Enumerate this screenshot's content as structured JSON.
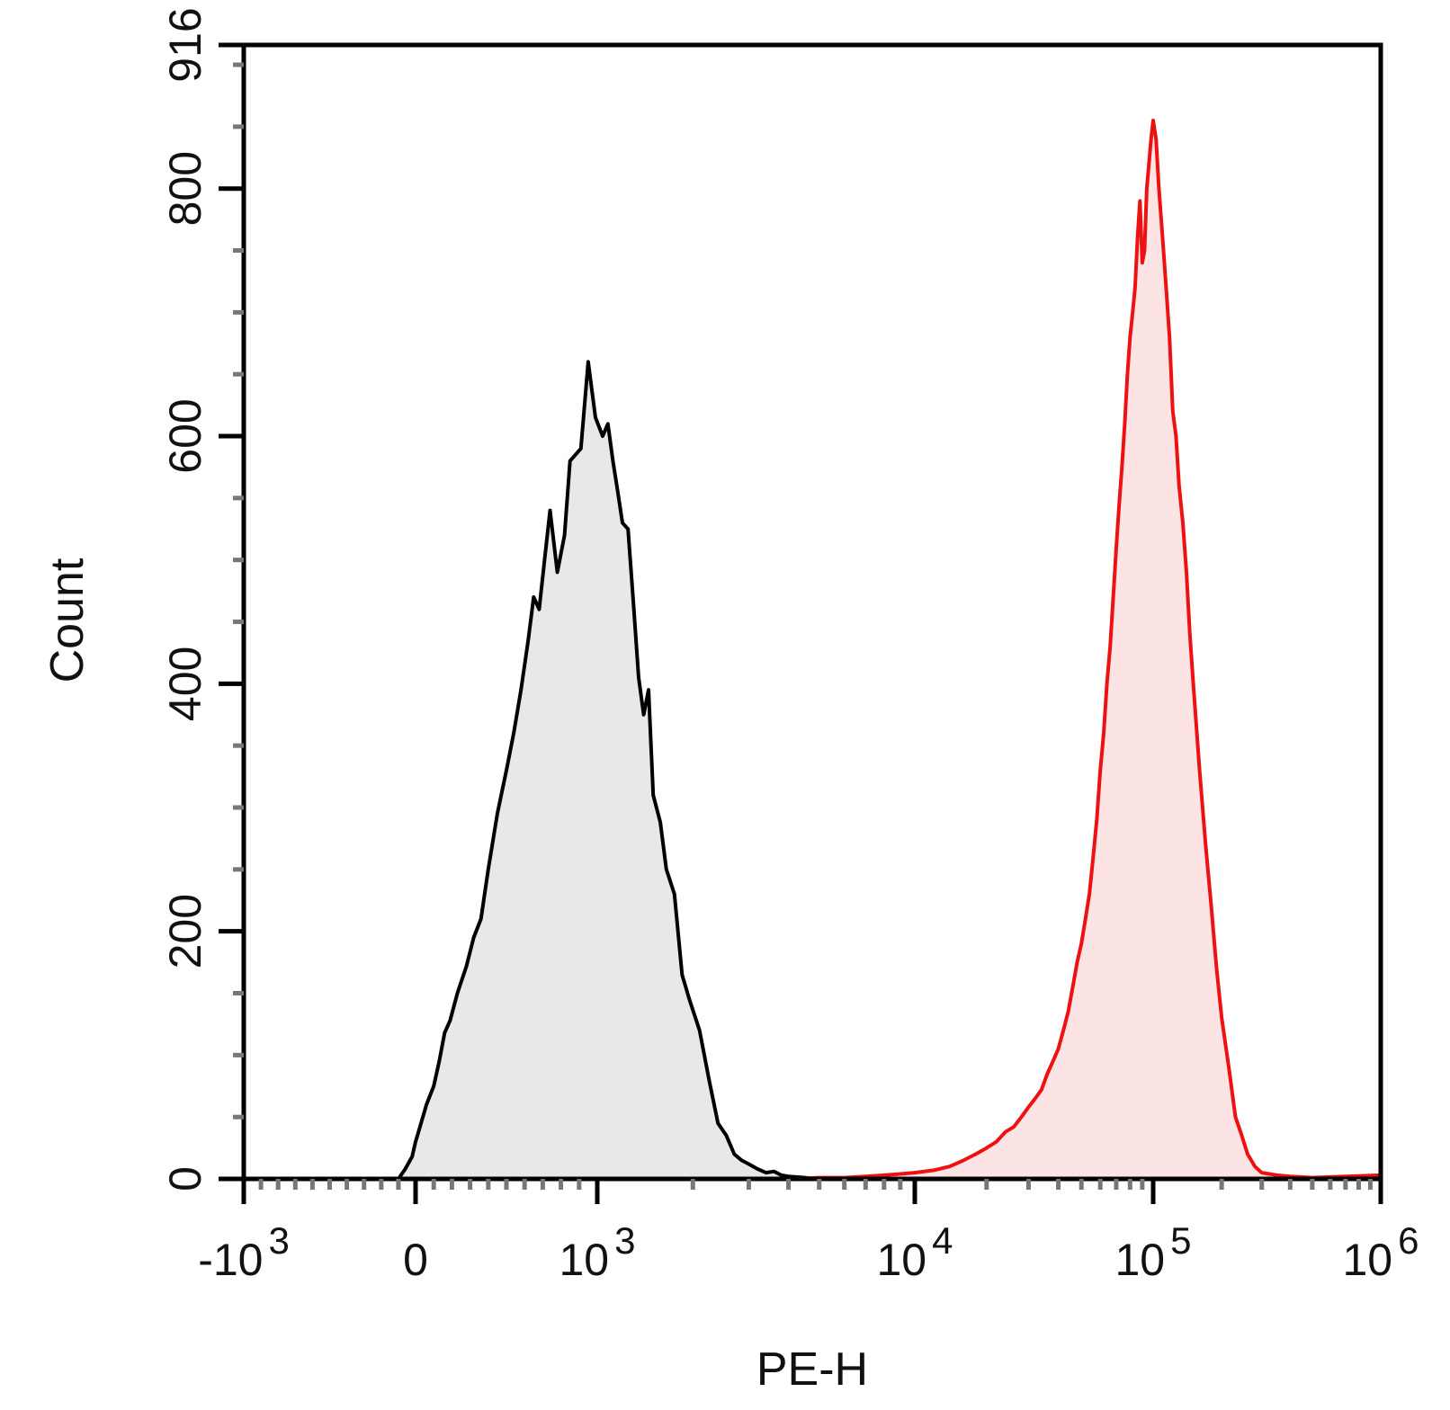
{
  "chart_data": {
    "type": "area",
    "title": "",
    "xlabel": "PE-H",
    "ylabel": "Count",
    "x_scale": "biexponential",
    "xlim": [
      -1000,
      1000000
    ],
    "ylim": [
      0,
      916
    ],
    "x_ticks": [
      {
        "value": -1000,
        "base": "-10",
        "exp": "3"
      },
      {
        "value": 0,
        "base": "0",
        "exp": ""
      },
      {
        "value": 1000,
        "base": "10",
        "exp": "3"
      },
      {
        "value": 10000,
        "base": "10",
        "exp": "4"
      },
      {
        "value": 100000,
        "base": "10",
        "exp": "5"
      },
      {
        "value": 1000000,
        "base": "10",
        "exp": "6"
      }
    ],
    "y_ticks": [
      0,
      200,
      400,
      600,
      800,
      916
    ],
    "grid": false,
    "legend": "none",
    "series": [
      {
        "color": "#000000",
        "fill": "#e8e8e8",
        "points": [
          [
            -1000,
            0
          ],
          [
            -150,
            0
          ],
          [
            -100,
            0
          ],
          [
            -60,
            8
          ],
          [
            -20,
            18
          ],
          [
            0,
            30
          ],
          [
            30,
            45
          ],
          [
            60,
            60
          ],
          [
            100,
            75
          ],
          [
            130,
            95
          ],
          [
            160,
            118
          ],
          [
            190,
            128
          ],
          [
            230,
            150
          ],
          [
            280,
            172
          ],
          [
            320,
            195
          ],
          [
            360,
            210
          ],
          [
            400,
            250
          ],
          [
            450,
            295
          ],
          [
            500,
            330
          ],
          [
            540,
            360
          ],
          [
            580,
            395
          ],
          [
            620,
            435
          ],
          [
            650,
            470
          ],
          [
            680,
            460
          ],
          [
            710,
            500
          ],
          [
            740,
            540
          ],
          [
            780,
            490
          ],
          [
            820,
            520
          ],
          [
            850,
            580
          ],
          [
            880,
            585
          ],
          [
            910,
            590
          ],
          [
            950,
            660
          ],
          [
            990,
            615
          ],
          [
            1040,
            600
          ],
          [
            1080,
            610
          ],
          [
            1120,
            580
          ],
          [
            1160,
            555
          ],
          [
            1200,
            530
          ],
          [
            1250,
            525
          ],
          [
            1300,
            465
          ],
          [
            1350,
            405
          ],
          [
            1400,
            375
          ],
          [
            1450,
            395
          ],
          [
            1500,
            310
          ],
          [
            1580,
            288
          ],
          [
            1650,
            250
          ],
          [
            1750,
            230
          ],
          [
            1850,
            165
          ],
          [
            1950,
            145
          ],
          [
            2100,
            120
          ],
          [
            2250,
            80
          ],
          [
            2400,
            45
          ],
          [
            2550,
            35
          ],
          [
            2700,
            20
          ],
          [
            2850,
            15
          ],
          [
            3000,
            12
          ],
          [
            3200,
            8
          ],
          [
            3400,
            5
          ],
          [
            3600,
            6
          ],
          [
            3800,
            3
          ],
          [
            4000,
            2
          ],
          [
            4500,
            1
          ],
          [
            5000,
            0
          ],
          [
            1000000,
            0
          ]
        ]
      },
      {
        "color": "#ee1111",
        "fill": "#fce4e4",
        "points": [
          [
            -1000,
            0
          ],
          [
            4000,
            0
          ],
          [
            5000,
            1
          ],
          [
            6000,
            1
          ],
          [
            7000,
            2
          ],
          [
            8000,
            3
          ],
          [
            9000,
            4
          ],
          [
            10000,
            5
          ],
          [
            12000,
            7
          ],
          [
            14000,
            10
          ],
          [
            16000,
            15
          ],
          [
            18000,
            20
          ],
          [
            20000,
            25
          ],
          [
            22000,
            30
          ],
          [
            24000,
            38
          ],
          [
            26000,
            42
          ],
          [
            28000,
            50
          ],
          [
            30000,
            58
          ],
          [
            32000,
            65
          ],
          [
            34000,
            72
          ],
          [
            36000,
            85
          ],
          [
            38000,
            95
          ],
          [
            40000,
            105
          ],
          [
            42000,
            120
          ],
          [
            44000,
            135
          ],
          [
            46000,
            155
          ],
          [
            48000,
            175
          ],
          [
            50000,
            190
          ],
          [
            52000,
            210
          ],
          [
            54000,
            230
          ],
          [
            56000,
            260
          ],
          [
            58000,
            290
          ],
          [
            60000,
            330
          ],
          [
            62000,
            360
          ],
          [
            64000,
            400
          ],
          [
            66000,
            430
          ],
          [
            68000,
            470
          ],
          [
            70000,
            510
          ],
          [
            72000,
            545
          ],
          [
            74000,
            575
          ],
          [
            76000,
            610
          ],
          [
            78000,
            650
          ],
          [
            80000,
            680
          ],
          [
            82000,
            700
          ],
          [
            84000,
            720
          ],
          [
            86000,
            760
          ],
          [
            88000,
            790
          ],
          [
            90000,
            740
          ],
          [
            92000,
            750
          ],
          [
            94000,
            800
          ],
          [
            96000,
            820
          ],
          [
            98000,
            840
          ],
          [
            100000,
            855
          ],
          [
            103000,
            840
          ],
          [
            106000,
            800
          ],
          [
            110000,
            760
          ],
          [
            114000,
            720
          ],
          [
            118000,
            680
          ],
          [
            122000,
            620
          ],
          [
            126000,
            600
          ],
          [
            130000,
            560
          ],
          [
            135000,
            530
          ],
          [
            140000,
            490
          ],
          [
            145000,
            440
          ],
          [
            150000,
            400
          ],
          [
            160000,
            330
          ],
          [
            170000,
            270
          ],
          [
            180000,
            220
          ],
          [
            190000,
            170
          ],
          [
            200000,
            130
          ],
          [
            215000,
            90
          ],
          [
            230000,
            50
          ],
          [
            245000,
            35
          ],
          [
            260000,
            20
          ],
          [
            280000,
            10
          ],
          [
            300000,
            5
          ],
          [
            350000,
            3
          ],
          [
            400000,
            2
          ],
          [
            500000,
            1
          ],
          [
            700000,
            2
          ],
          [
            1000000,
            3
          ]
        ]
      }
    ]
  }
}
